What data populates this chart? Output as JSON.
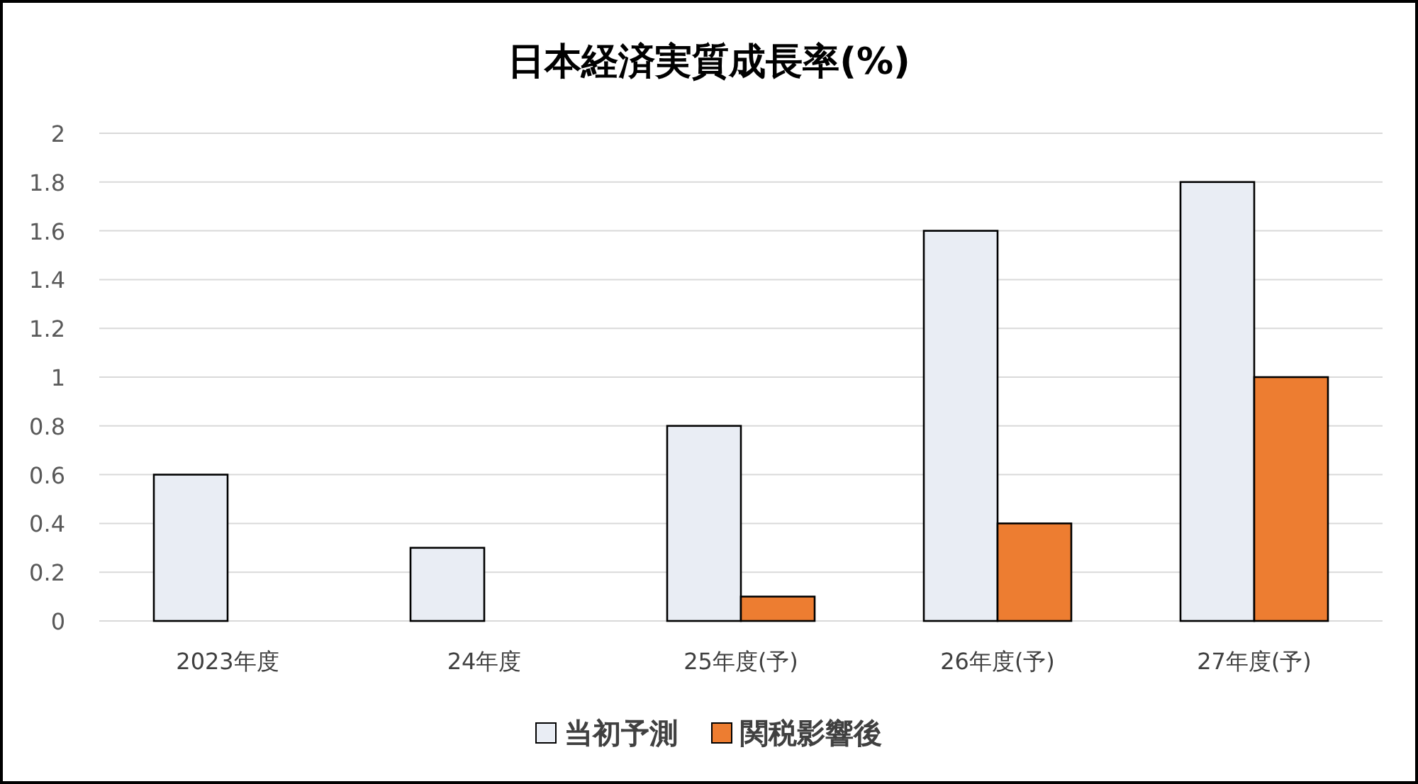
{
  "chart_data": {
    "type": "bar",
    "title": "日本経済実質成長率(%)",
    "categories": [
      "2023年度",
      "24年度",
      "25年度(予)",
      "26年度(予)",
      "27年度(予)"
    ],
    "series": [
      {
        "name": "当初予測",
        "color": "#e9edf4",
        "values": [
          0.6,
          0.3,
          0.8,
          1.6,
          1.8
        ]
      },
      {
        "name": "関税影響後",
        "color": "#ed7d31",
        "values": [
          null,
          null,
          0.1,
          0.4,
          1.0
        ]
      }
    ],
    "ylim": [
      0,
      2
    ],
    "yticks": [
      0,
      0.2,
      0.4,
      0.6,
      0.8,
      1,
      1.2,
      1.4,
      1.6,
      1.8,
      2
    ],
    "grid": "y",
    "legend": "bottom"
  }
}
